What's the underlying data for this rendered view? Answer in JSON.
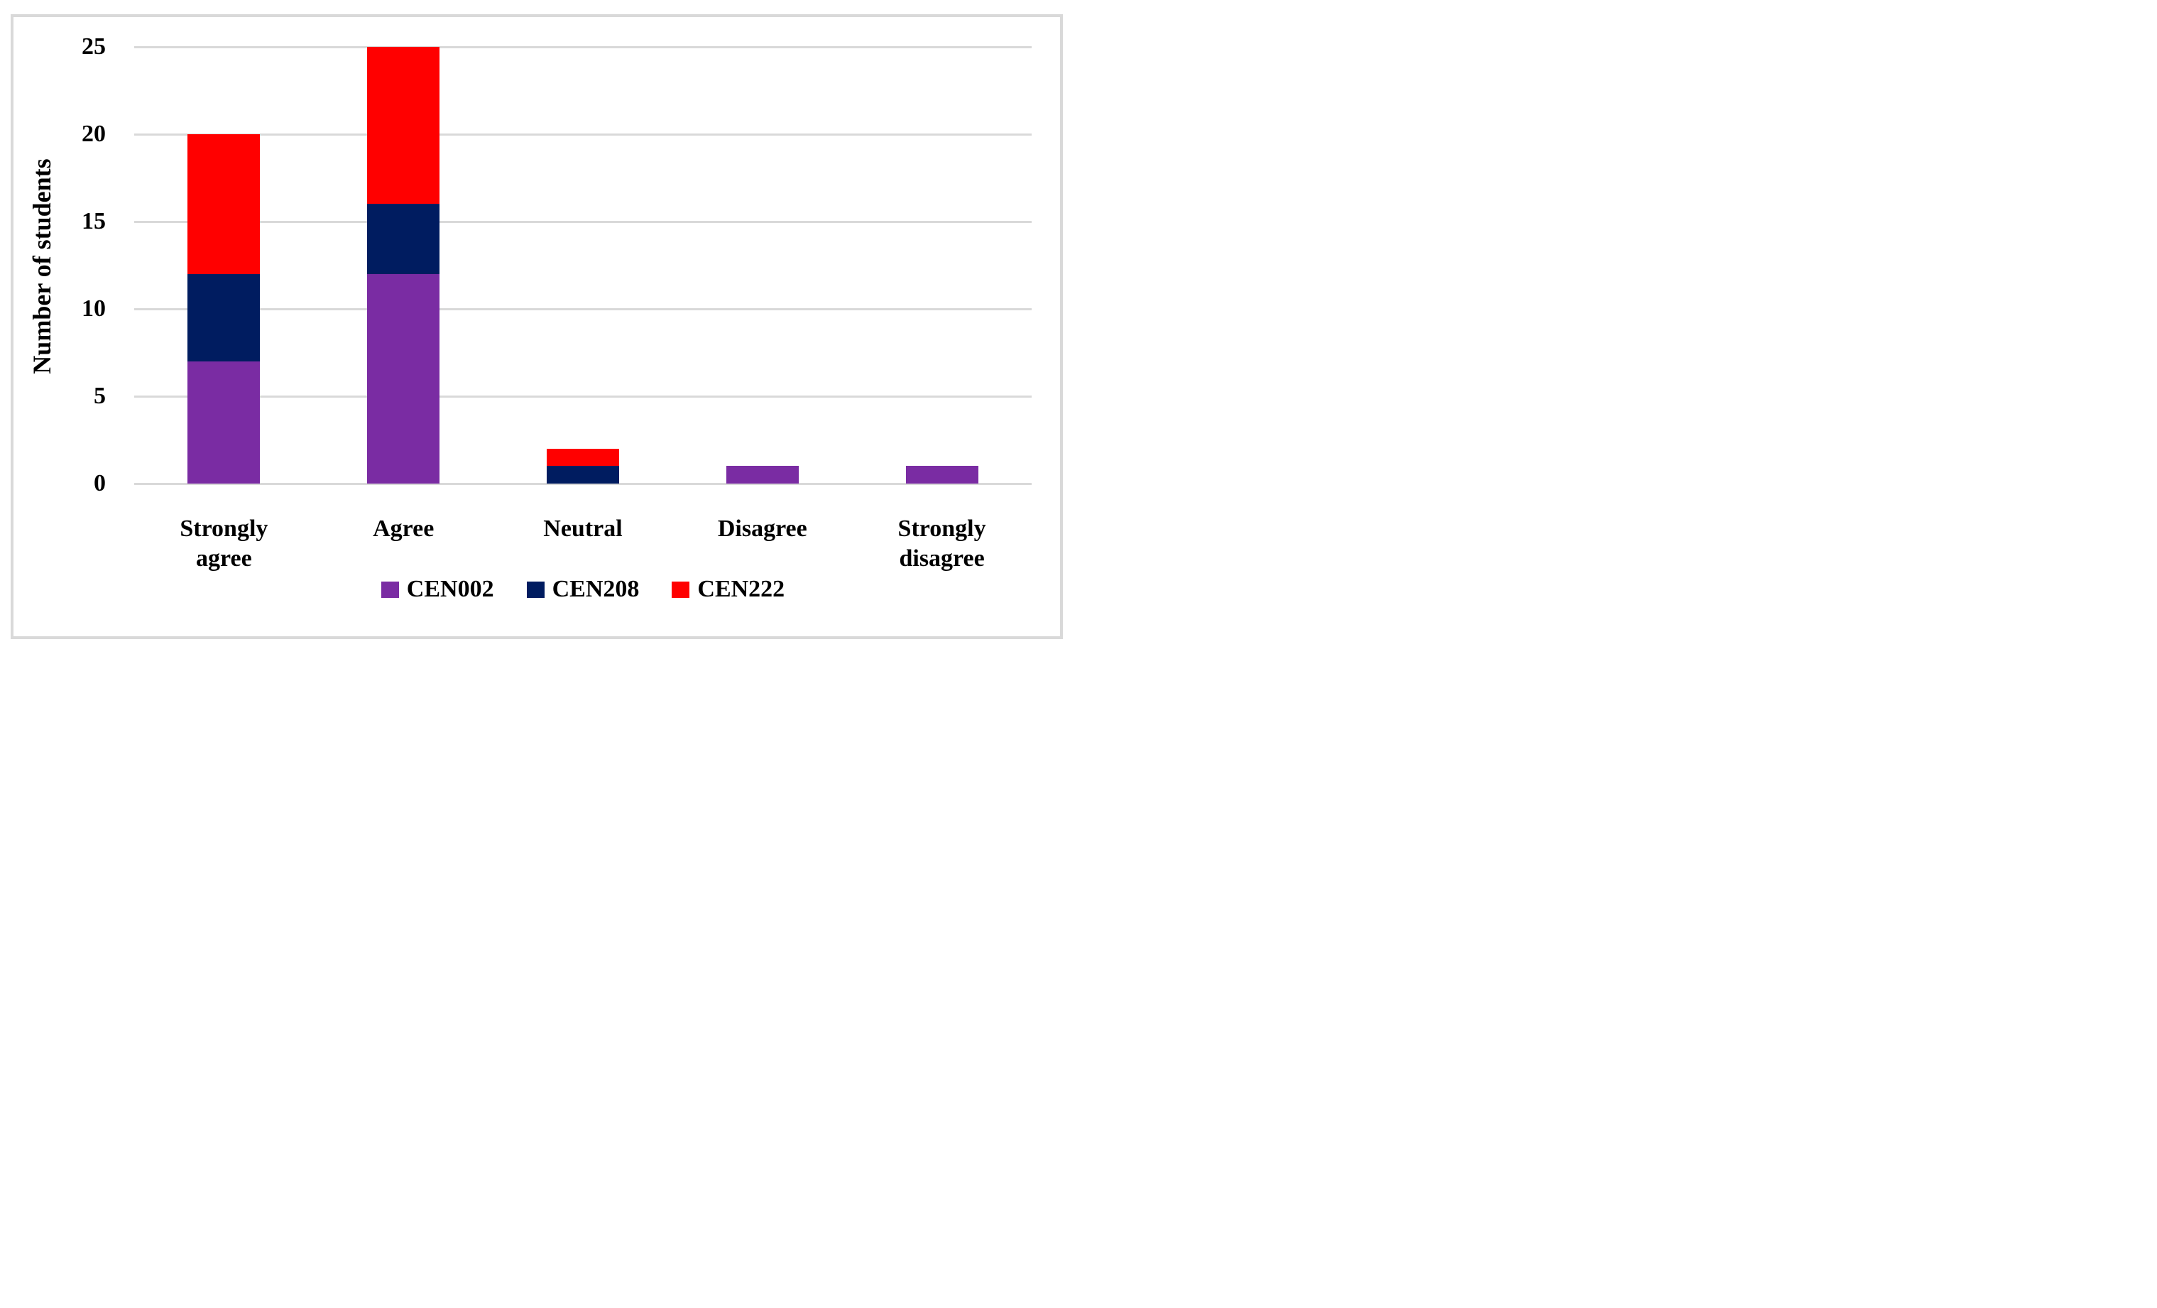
{
  "figure": {
    "background": "#ffffff",
    "frame_border_color": "#d9d9d9",
    "text_color": "#000000"
  },
  "chart_data": {
    "type": "bar",
    "stacked": true,
    "title": "",
    "xlabel": "",
    "ylabel": "Number of students",
    "categories": [
      "Strongly agree",
      "Agree",
      "Neutral",
      "Disagree",
      "Strongly disagree"
    ],
    "series": [
      {
        "name": "CEN002",
        "color": "#7a2ca3",
        "values": [
          7,
          12,
          0,
          1,
          1
        ]
      },
      {
        "name": "CEN208",
        "color": "#001c60",
        "values": [
          5,
          4,
          1,
          0,
          0
        ]
      },
      {
        "name": "CEN222",
        "color": "#ff0000",
        "values": [
          8,
          9,
          1,
          0,
          0
        ]
      }
    ],
    "totals": [
      20,
      25,
      2,
      1,
      1
    ],
    "ylim": [
      0,
      25
    ],
    "yticks": [
      0,
      5,
      10,
      15,
      20,
      25
    ],
    "grid": true,
    "gridline_color": "#d9d9d9",
    "legend_position": "bottom"
  }
}
